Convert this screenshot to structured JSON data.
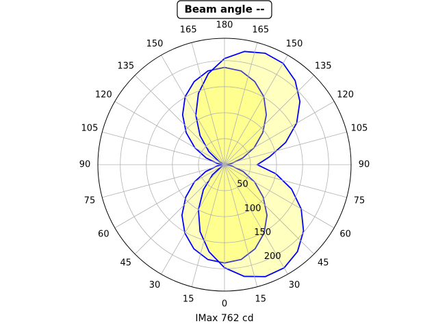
{
  "chart_data": {
    "type": "polar",
    "title": "Beam angle --",
    "xlabel": "IMax 762 cd",
    "theta": [
      0,
      10,
      20,
      30,
      40,
      50,
      60,
      70,
      80,
      90,
      100,
      110,
      120,
      130,
      140,
      150,
      160,
      170,
      180,
      190,
      200,
      210,
      220,
      230,
      240,
      250,
      260,
      270,
      280,
      290,
      300,
      310,
      320,
      330,
      340,
      350
    ],
    "series": [
      {
        "color": "#0000ff",
        "fill": "#ffff00",
        "values": [
          189,
          185,
          172,
          152,
          127,
          97,
          67,
          38,
          14,
          0,
          14,
          37,
          66,
          96,
          125,
          151,
          170,
          183,
          187,
          183,
          170,
          151,
          125,
          96,
          66,
          37,
          14,
          0,
          14,
          38,
          67,
          97,
          127,
          152,
          172,
          185
        ]
      },
      {
        "color": "#0000ff",
        "fill": "#ffff00",
        "values": [
          198,
          218,
          229,
          229,
          218,
          198,
          170,
          137,
          100,
          63,
          88,
          125,
          160,
          189,
          211,
          225,
          228,
          221,
          204,
          178,
          146,
          110,
          73,
          39,
          12,
          0,
          0,
          0,
          0,
          0,
          6,
          30,
          63,
          100,
          137,
          170
        ]
      }
    ],
    "rlim": [
      0,
      243
    ],
    "rticks": [
      50,
      100,
      150,
      200
    ],
    "thetaticks": [
      0,
      15,
      30,
      45,
      60,
      75,
      90,
      105,
      120,
      135,
      150,
      165,
      180,
      {
        "value": 195,
        "label": "165"
      },
      {
        "value": 210,
        "label": "150"
      },
      {
        "value": 225,
        "label": "135"
      },
      {
        "value": 240,
        "label": "120"
      },
      {
        "value": 255,
        "label": "105"
      },
      {
        "value": 270,
        "label": "90"
      },
      {
        "value": 285,
        "label": "75"
      },
      {
        "value": 300,
        "label": "60"
      },
      {
        "value": 315,
        "label": "45"
      },
      {
        "value": 330,
        "label": "30"
      },
      {
        "value": 345,
        "label": "15"
      }
    ],
    "grid": true
  }
}
